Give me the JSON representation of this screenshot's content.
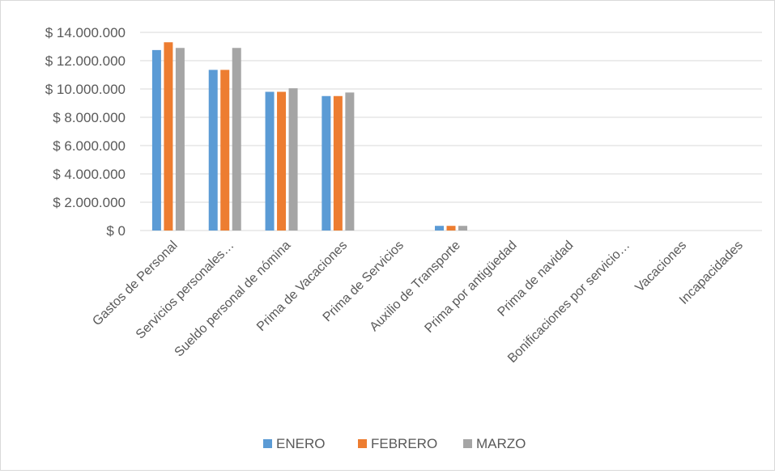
{
  "chart_data": {
    "type": "bar",
    "categories": [
      "Gastos de Personal",
      "Servicios personales…",
      "Sueldo personal de nómina",
      "Prima de Vacaciones",
      "Prima de Servicios",
      "Auxilio de Transporte",
      "Prima por antigüedad",
      "Prima de navidad",
      "Bonificaciones por servicio…",
      "Vacaciones",
      "Incapacidades"
    ],
    "series": [
      {
        "name": "ENERO",
        "color": "#5b9bd5",
        "values": [
          12750000,
          11350000,
          9800000,
          9500000,
          0,
          330000,
          0,
          0,
          0,
          0,
          0
        ]
      },
      {
        "name": "FEBRERO",
        "color": "#ed7d31",
        "values": [
          13300000,
          11350000,
          9800000,
          9500000,
          0,
          330000,
          0,
          0,
          0,
          0,
          0
        ]
      },
      {
        "name": "MARZO",
        "color": "#a5a5a5",
        "values": [
          12900000,
          12900000,
          10050000,
          9750000,
          0,
          330000,
          0,
          0,
          0,
          0,
          0
        ]
      }
    ],
    "yticks": [
      0,
      2000000,
      4000000,
      6000000,
      8000000,
      10000000,
      12000000,
      14000000
    ],
    "ytick_labels": [
      "$ 0",
      "$ 2.000.000",
      "$ 4.000.000",
      "$ 6.000.000",
      "$ 8.000.000",
      "$ 10.000.000",
      "$ 12.000.000",
      "$ 14.000.000"
    ],
    "ylim": [
      0,
      14000000
    ],
    "grid": true,
    "legend_position": "bottom",
    "title": "",
    "xlabel": "",
    "ylabel": ""
  }
}
